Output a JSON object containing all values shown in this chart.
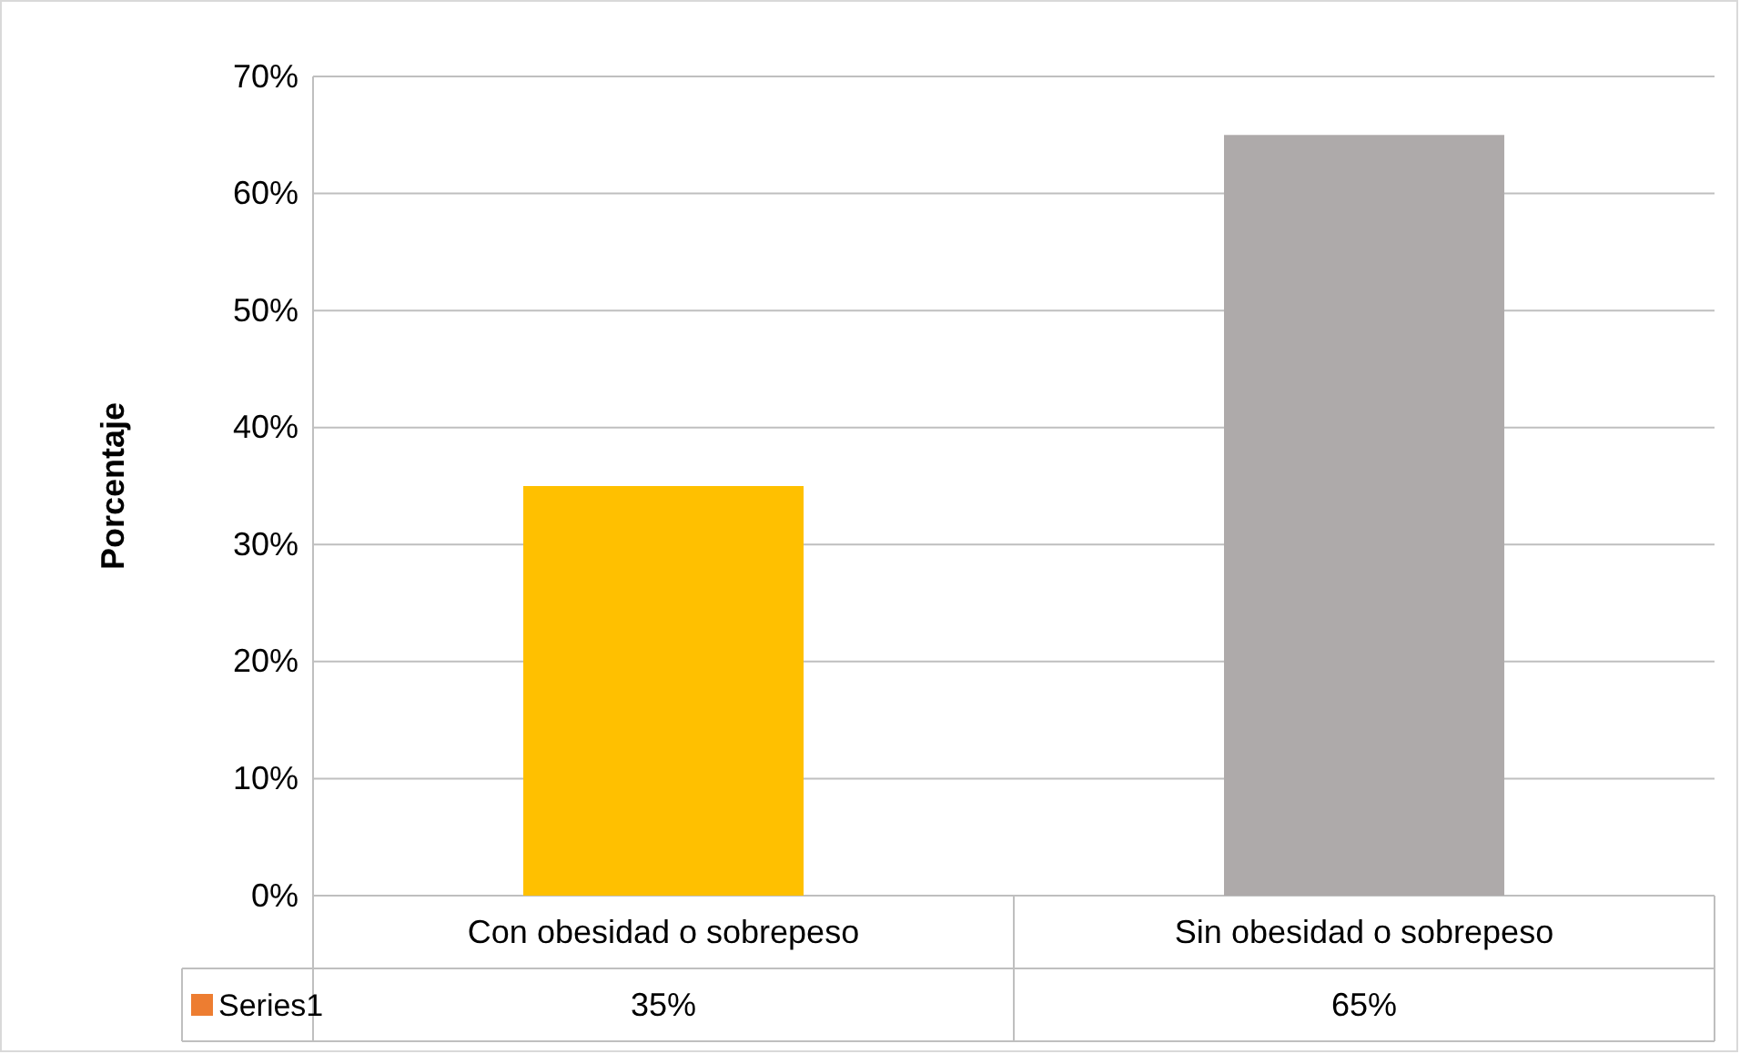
{
  "chart_data": {
    "type": "bar",
    "ylabel": "Porcentaje",
    "categories": [
      "Con obesidad o sobrepeso",
      "Sin obesidad o sobrepeso"
    ],
    "series": [
      {
        "name": "Series1",
        "color": "#ed7d31",
        "colors": [
          "#ffc000",
          "#aeaaaa"
        ],
        "values": [
          35,
          65
        ],
        "value_labels": [
          "35%",
          "65%"
        ]
      }
    ],
    "ylim": [
      0,
      70
    ],
    "yticks": [
      {
        "value": 0,
        "label": "0%"
      },
      {
        "value": 10,
        "label": "10%"
      },
      {
        "value": 20,
        "label": "20%"
      },
      {
        "value": 30,
        "label": "30%"
      },
      {
        "value": 40,
        "label": "40%"
      },
      {
        "value": 50,
        "label": "50%"
      },
      {
        "value": 60,
        "label": "60%"
      },
      {
        "value": 70,
        "label": "70%"
      }
    ],
    "grid": "y",
    "legend": "bottom"
  }
}
